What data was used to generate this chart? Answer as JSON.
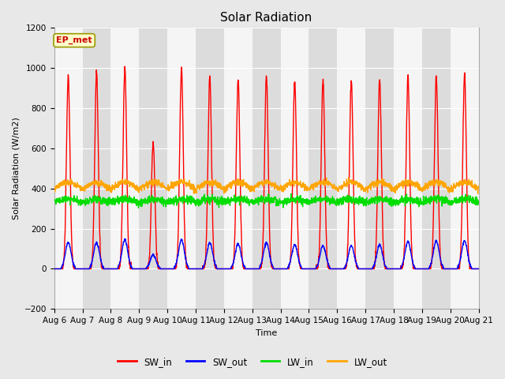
{
  "title": "Solar Radiation",
  "xlabel": "Time",
  "ylabel": "Solar Radiation (W/m2)",
  "ylim": [
    -200,
    1200
  ],
  "x_tick_labels": [
    "Aug 6",
    "Aug 7",
    "Aug 8",
    "Aug 9",
    "Aug 10",
    "Aug 11",
    "Aug 12",
    "Aug 13",
    "Aug 14",
    "Aug 15",
    "Aug 16",
    "Aug 17",
    "Aug 18",
    "Aug 19",
    "Aug 20",
    "Aug 21"
  ],
  "series_colors": {
    "SW_in": "#ff0000",
    "SW_out": "#0000ff",
    "LW_in": "#00dd00",
    "LW_out": "#ffa500"
  },
  "bg_color": "#e8e8e8",
  "plot_bg_color_light": "#f5f5f5",
  "plot_bg_color_dark": "#dcdcdc",
  "grid_color": "#ffffff",
  "annotation_text": "EP_met",
  "annotation_bg": "#ffffcc",
  "annotation_border": "#999900",
  "annotation_text_color": "#cc0000",
  "n_days": 15,
  "pts_per_day": 144,
  "SW_in_peak": [
    960,
    980,
    1000,
    630,
    1000,
    960,
    950,
    960,
    940,
    940,
    940,
    945,
    955,
    965,
    970
  ],
  "SW_out_peak": [
    130,
    130,
    145,
    70,
    145,
    130,
    125,
    130,
    120,
    115,
    115,
    120,
    135,
    140,
    140
  ],
  "LW_in_base": 330,
  "LW_in_amp": 55,
  "LW_out_base": 395,
  "LW_out_amp": 90,
  "legend_labels": [
    "SW_in",
    "SW_out",
    "LW_in",
    "LW_out"
  ],
  "legend_colors": [
    "#ff0000",
    "#0000ff",
    "#00dd00",
    "#ffa500"
  ],
  "line_width": 1.0,
  "title_fontsize": 11,
  "label_fontsize": 8,
  "tick_fontsize": 7.5
}
